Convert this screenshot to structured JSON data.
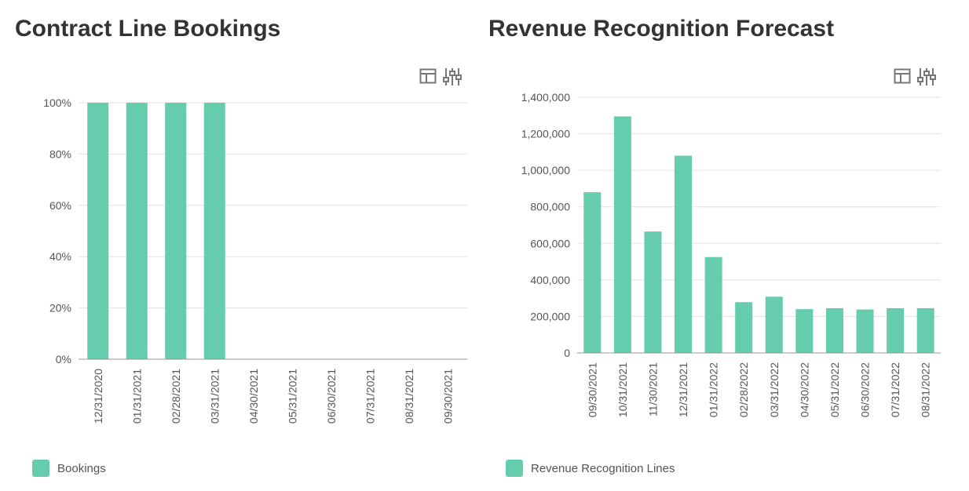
{
  "colors": {
    "bar": "#66ccae",
    "grid": "#e3e3e3",
    "axis": "#999999",
    "tick_text": "#555555",
    "icon": "#777777"
  },
  "panels": [
    {
      "title": "Contract Line Bookings",
      "legend_label": "Bookings"
    },
    {
      "title": "Revenue Recognition Forecast",
      "legend_label": "Revenue Recognition Lines"
    }
  ],
  "chart_data": [
    {
      "type": "bar",
      "title": "Contract Line Bookings",
      "categories": [
        "12/31/2020",
        "01/31/2021",
        "02/28/2021",
        "03/31/2021",
        "04/30/2021",
        "05/31/2021",
        "06/30/2021",
        "07/31/2021",
        "08/31/2021",
        "09/30/2021"
      ],
      "series": [
        {
          "name": "Bookings",
          "values": [
            100,
            100,
            100,
            100,
            0,
            0,
            0,
            0,
            0,
            0
          ]
        }
      ],
      "y_ticks": [
        "0%",
        "20%",
        "40%",
        "60%",
        "80%",
        "100%"
      ],
      "ylim": [
        0,
        100
      ],
      "grid": true,
      "legend": "bottom-left"
    },
    {
      "type": "bar",
      "title": "Revenue Recognition Forecast",
      "categories": [
        "09/30/2021",
        "10/31/2021",
        "11/30/2021",
        "12/31/2021",
        "01/31/2022",
        "02/28/2022",
        "03/31/2022",
        "04/30/2022",
        "05/31/2022",
        "06/30/2022",
        "07/31/2022",
        "08/31/2022"
      ],
      "series": [
        {
          "name": "Revenue Recognition Lines",
          "values": [
            880000,
            1295000,
            665000,
            1080000,
            525000,
            278000,
            308000,
            240000,
            245000,
            238000,
            245000,
            245000
          ]
        }
      ],
      "y_ticks": [
        "0",
        "200,000",
        "400,000",
        "600,000",
        "800,000",
        "1,000,000",
        "1,200,000",
        "1,400,000"
      ],
      "ylim": [
        0,
        1400000
      ],
      "grid": true,
      "legend": "bottom-left"
    }
  ]
}
